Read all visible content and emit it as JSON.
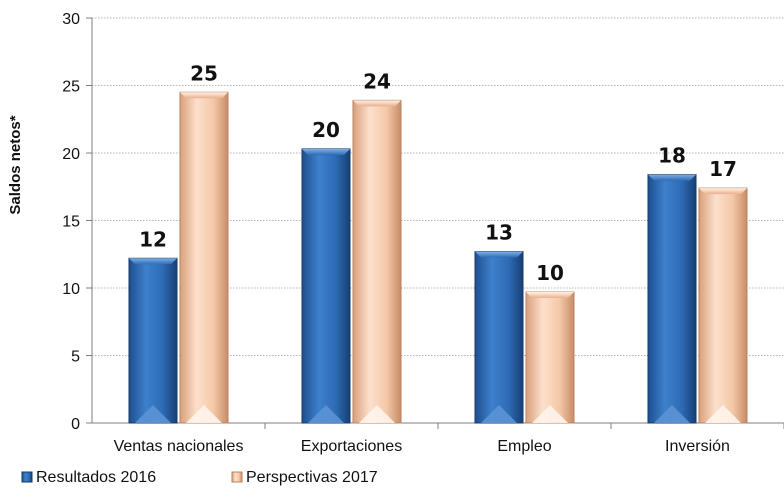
{
  "chart_data": {
    "type": "bar",
    "title": "",
    "xlabel": "",
    "ylabel": "Saldos netos*",
    "ylim": [
      0,
      30
    ],
    "yticks": [
      0,
      5,
      10,
      15,
      20,
      25,
      30
    ],
    "grid": true,
    "legend_position": "bottom-left",
    "categories": [
      "Ventas nacionales",
      "Exportaciones",
      "Empleo",
      "Inversión"
    ],
    "series": [
      {
        "name": "Resultados 2016",
        "values": [
          12.2,
          20.3,
          12.7,
          18.4
        ],
        "labels": [
          "12",
          "20",
          "13",
          "18"
        ],
        "color": "#2e6bb5"
      },
      {
        "name": "Perspectivas 2017",
        "values": [
          24.5,
          23.9,
          9.7,
          17.4
        ],
        "labels": [
          "25",
          "24",
          "10",
          "17"
        ],
        "color": "#f4c8a8"
      }
    ]
  }
}
